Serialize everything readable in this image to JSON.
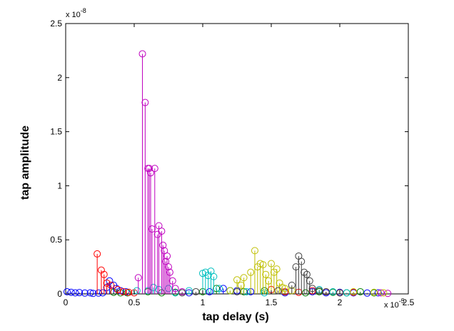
{
  "chart_data": {
    "type": "stem",
    "title": "",
    "xlabel": "tap delay (s)",
    "ylabel": "tap amplitude",
    "x_exponent_label": "x 10",
    "x_exponent_power": "-5",
    "y_exponent_label": "x 10",
    "y_exponent_power": "-8",
    "x_units_note": "x values expressed in units of 1e-5 s",
    "y_units_note": "y values expressed in units of 1e-8",
    "xlim": [
      0,
      2.5
    ],
    "ylim": [
      0,
      2.5
    ],
    "x_ticks": [
      "0",
      "0.5",
      "1",
      "1.5",
      "2",
      "2.5"
    ],
    "y_ticks": [
      "0",
      "0.5",
      "1",
      "1.5",
      "2",
      "2.5"
    ],
    "x_tick_values": [
      0,
      0.5,
      1,
      1.5,
      2,
      2.5
    ],
    "y_tick_values": [
      0,
      0.5,
      1,
      1.5,
      2,
      2.5
    ],
    "grid": false,
    "marker": "circle",
    "series": [
      {
        "color": "#0000ff",
        "points": [
          [
            0.01,
            0.02
          ],
          [
            0.04,
            0.015
          ],
          [
            0.07,
            0.01
          ],
          [
            0.1,
            0.012
          ],
          [
            0.14,
            0.008
          ],
          [
            0.18,
            0.01
          ],
          [
            0.2,
            0.005
          ],
          [
            0.24,
            0.008
          ],
          [
            0.27,
            0.01
          ],
          [
            0.3,
            0.06
          ],
          [
            0.32,
            0.12
          ],
          [
            0.35,
            0.08
          ],
          [
            0.37,
            0.05
          ],
          [
            0.4,
            0.03
          ],
          [
            0.44,
            0.02
          ],
          [
            0.9,
            0.01
          ],
          [
            1.05,
            0.02
          ],
          [
            1.15,
            0.05
          ],
          [
            1.25,
            0.03
          ],
          [
            1.35,
            0.02
          ],
          [
            1.6,
            0.01
          ],
          [
            1.8,
            0.02
          ],
          [
            1.9,
            0.01
          ],
          [
            2.0,
            0.015
          ],
          [
            2.1,
            0.01
          ],
          [
            2.2,
            0.008
          ],
          [
            2.28,
            0.01
          ]
        ]
      },
      {
        "color": "#008000",
        "points": [
          [
            0.35,
            0.015
          ],
          [
            0.4,
            0.01
          ],
          [
            0.45,
            0.01
          ],
          [
            0.6,
            0.02
          ],
          [
            0.7,
            0.01
          ],
          [
            0.8,
            0.015
          ],
          [
            1.0,
            0.02
          ],
          [
            1.1,
            0.05
          ],
          [
            1.2,
            0.03
          ],
          [
            1.3,
            0.02
          ],
          [
            1.45,
            0.03
          ],
          [
            1.6,
            0.02
          ],
          [
            1.75,
            0.01
          ],
          [
            1.85,
            0.02
          ],
          [
            1.95,
            0.015
          ],
          [
            2.05,
            0.01
          ],
          [
            2.15,
            0.02
          ],
          [
            2.25,
            0.01
          ]
        ]
      },
      {
        "color": "#ff0000",
        "points": [
          [
            0.23,
            0.37
          ],
          [
            0.26,
            0.22
          ],
          [
            0.28,
            0.18
          ],
          [
            0.3,
            0.1
          ],
          [
            0.33,
            0.08
          ],
          [
            0.38,
            0.04
          ],
          [
            0.42,
            0.02
          ],
          [
            0.46,
            0.015
          ],
          [
            0.5,
            0.01
          ],
          [
            1.5,
            0.04
          ],
          [
            1.6,
            0.02
          ],
          [
            1.7,
            0.015
          ],
          [
            1.8,
            0.03
          ],
          [
            1.9,
            0.02
          ],
          [
            2.0,
            0.01
          ],
          [
            2.1,
            0.015
          ]
        ]
      },
      {
        "color": "#00bfbf",
        "points": [
          [
            0.52,
            0.03
          ],
          [
            0.6,
            0.03
          ],
          [
            0.64,
            0.06
          ],
          [
            0.68,
            0.04
          ],
          [
            0.75,
            0.05
          ],
          [
            0.8,
            0.01
          ],
          [
            0.9,
            0.03
          ],
          [
            1.0,
            0.19
          ],
          [
            1.02,
            0.2
          ],
          [
            1.04,
            0.17
          ],
          [
            1.06,
            0.21
          ],
          [
            1.08,
            0.16
          ],
          [
            1.12,
            0.05
          ],
          [
            1.2,
            0.03
          ],
          [
            1.32,
            0.02
          ],
          [
            1.45,
            0.01
          ],
          [
            1.85,
            0.04
          ],
          [
            1.95,
            0.02
          ],
          [
            2.05,
            0.01
          ]
        ]
      },
      {
        "color": "#bf00bf",
        "points": [
          [
            0.53,
            0.15
          ],
          [
            0.56,
            2.22
          ],
          [
            0.58,
            1.77
          ],
          [
            0.6,
            1.16
          ],
          [
            0.61,
            1.16
          ],
          [
            0.62,
            1.12
          ],
          [
            0.63,
            0.6
          ],
          [
            0.65,
            1.16
          ],
          [
            0.67,
            0.55
          ],
          [
            0.68,
            0.63
          ],
          [
            0.7,
            0.58
          ],
          [
            0.71,
            0.45
          ],
          [
            0.72,
            0.4
          ],
          [
            0.73,
            0.3
          ],
          [
            0.74,
            0.35
          ],
          [
            0.75,
            0.25
          ],
          [
            0.76,
            0.2
          ],
          [
            0.78,
            0.12
          ],
          [
            0.8,
            0.05
          ],
          [
            0.85,
            0.02
          ],
          [
            2.3,
            0.01
          ],
          [
            2.35,
            0.005
          ]
        ]
      },
      {
        "color": "#bfbf00",
        "points": [
          [
            1.2,
            0.03
          ],
          [
            1.25,
            0.13
          ],
          [
            1.28,
            0.08
          ],
          [
            1.3,
            0.15
          ],
          [
            1.35,
            0.2
          ],
          [
            1.38,
            0.4
          ],
          [
            1.4,
            0.25
          ],
          [
            1.42,
            0.28
          ],
          [
            1.44,
            0.27
          ],
          [
            1.46,
            0.18
          ],
          [
            1.48,
            0.12
          ],
          [
            1.5,
            0.28
          ],
          [
            1.52,
            0.2
          ],
          [
            1.54,
            0.23
          ],
          [
            1.56,
            0.1
          ],
          [
            1.58,
            0.06
          ],
          [
            1.6,
            0.05
          ],
          [
            1.65,
            0.03
          ],
          [
            2.1,
            0.02
          ],
          [
            2.25,
            0.015
          ],
          [
            2.32,
            0.01
          ]
        ]
      },
      {
        "color": "#404040",
        "points": [
          [
            0.85,
            0.01
          ],
          [
            0.95,
            0.02
          ],
          [
            1.25,
            0.02
          ],
          [
            1.55,
            0.03
          ],
          [
            1.65,
            0.08
          ],
          [
            1.68,
            0.25
          ],
          [
            1.7,
            0.35
          ],
          [
            1.72,
            0.3
          ],
          [
            1.74,
            0.2
          ],
          [
            1.76,
            0.18
          ],
          [
            1.78,
            0.12
          ],
          [
            1.8,
            0.05
          ],
          [
            1.85,
            0.03
          ],
          [
            1.9,
            0.02
          ],
          [
            2.0,
            0.01
          ]
        ]
      }
    ]
  }
}
